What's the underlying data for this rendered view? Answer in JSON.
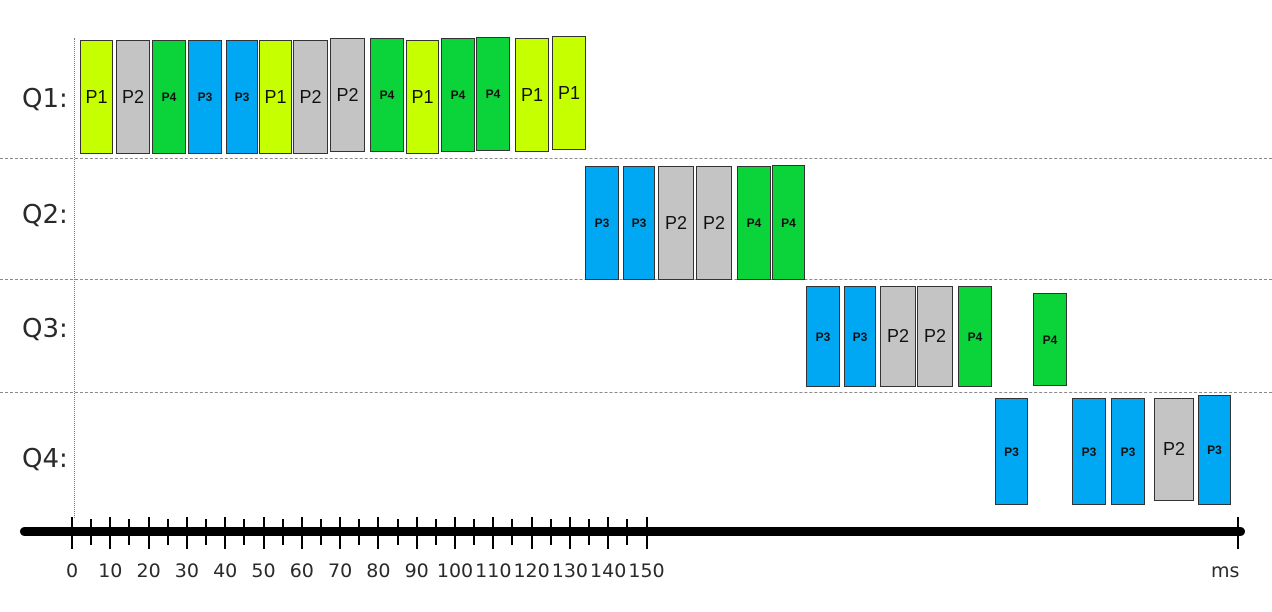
{
  "queues": [
    {
      "label": "Q1:",
      "blocks": [
        {
          "p": "P1",
          "c": "#c6ff00"
        },
        {
          "p": "P2",
          "c": "#c4c4c4"
        },
        {
          "p": "P4",
          "c": "#0bd43b"
        },
        {
          "p": "P3",
          "c": "#00a8f3"
        },
        {
          "p": "P3",
          "c": "#00a8f3"
        },
        {
          "p": "P1",
          "c": "#c6ff00"
        },
        {
          "p": "P2",
          "c": "#c4c4c4"
        },
        {
          "p": "P2",
          "c": "#c4c4c4"
        },
        {
          "p": "P4",
          "c": "#0bd43b"
        },
        {
          "p": "P1",
          "c": "#c6ff00"
        },
        {
          "p": "P4",
          "c": "#0bd43b"
        },
        {
          "p": "P4",
          "c": "#0bd43b"
        },
        {
          "p": "P1",
          "c": "#c6ff00"
        },
        {
          "p": "P1",
          "c": "#c6ff00"
        }
      ]
    },
    {
      "label": "Q2:",
      "blocks": [
        {
          "p": "P3",
          "c": "#00a8f3"
        },
        {
          "p": "P3",
          "c": "#00a8f3"
        },
        {
          "p": "P2",
          "c": "#c4c4c4"
        },
        {
          "p": "P2",
          "c": "#c4c4c4"
        },
        {
          "p": "P4",
          "c": "#0bd43b"
        },
        {
          "p": "P4",
          "c": "#0bd43b"
        }
      ]
    },
    {
      "label": "Q3:",
      "blocks": [
        {
          "p": "P3",
          "c": "#00a8f3"
        },
        {
          "p": "P3",
          "c": "#00a8f3"
        },
        {
          "p": "P2",
          "c": "#c4c4c4"
        },
        {
          "p": "P2",
          "c": "#c4c4c4"
        },
        {
          "p": "P4",
          "c": "#0bd43b"
        },
        {
          "p": "P4",
          "c": "#0bd43b"
        }
      ]
    },
    {
      "label": "Q4:",
      "blocks": [
        {
          "p": "P3",
          "c": "#00a8f3"
        },
        {
          "p": "P3",
          "c": "#00a8f3"
        },
        {
          "p": "P3",
          "c": "#00a8f3"
        },
        {
          "p": "P2",
          "c": "#c4c4c4"
        },
        {
          "p": "P3",
          "c": "#00a8f3"
        }
      ]
    }
  ],
  "axis": {
    "ticks": [
      "0",
      "10",
      "20",
      "30",
      "40",
      "50",
      "60",
      "70",
      "80",
      "90",
      "100",
      "110",
      "120",
      "130",
      "140",
      "150"
    ],
    "unit": "ms"
  }
}
